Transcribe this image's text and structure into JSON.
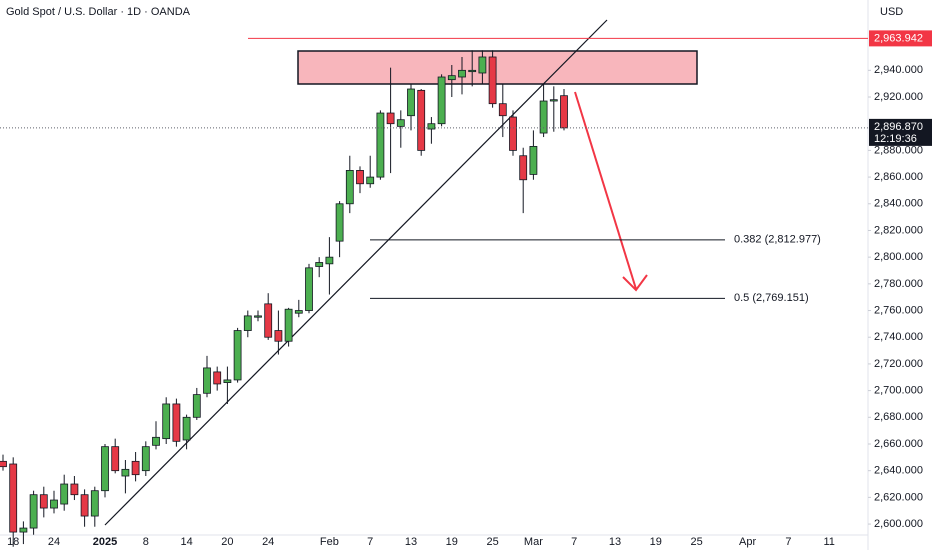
{
  "chart_data": {
    "type": "candlestick",
    "title": "Gold Spot / U.S. Dollar · 1D · OANDA",
    "currency": "USD",
    "up_color": "#4caf50",
    "down_color": "#e53946",
    "grid": false,
    "categories": [
      null,
      "18",
      null,
      null,
      null,
      "24",
      null,
      null,
      null,
      null,
      "2025",
      null,
      null,
      null,
      "8",
      null,
      null,
      null,
      "14",
      null,
      null,
      null,
      "20",
      null,
      null,
      null,
      "24",
      null,
      null,
      null,
      null,
      null,
      "Feb",
      null,
      null,
      null,
      "7",
      null,
      null,
      null,
      "13",
      null,
      null,
      null,
      "19",
      null,
      null,
      null,
      "25",
      null,
      null,
      null,
      "Mar",
      null,
      null,
      null,
      "7",
      null,
      null,
      null,
      "13",
      null,
      null,
      null,
      "19",
      null,
      null,
      null,
      "25",
      null,
      null,
      null,
      null,
      "Apr",
      null,
      null,
      null,
      "7",
      null,
      null,
      null,
      "11",
      null,
      null,
      null
    ],
    "open": [
      2647,
      2645,
      2594,
      2597,
      2622,
      2612,
      2615,
      2630,
      2622,
      2606,
      2625,
      2658,
      2636,
      2647,
      2640,
      2659,
      2664,
      2690,
      2663,
      2680,
      2698,
      2714,
      2706,
      2708,
      2745,
      2755,
      2765,
      2745,
      2737,
      2758,
      2760,
      2793,
      2795,
      2812,
      2840,
      2865,
      2855,
      2860,
      2908,
      2898,
      2906,
      2925,
      2896,
      2900,
      2933,
      2935,
      2939,
      2938,
      2950,
      2915,
      2905,
      2876,
      2862,
      2893,
      2917,
      2921,
      null,
      null,
      null,
      null,
      null,
      null,
      null,
      null,
      null,
      null,
      null,
      null,
      null,
      null,
      null,
      null,
      null,
      null,
      null,
      null,
      null,
      null,
      null,
      null,
      null,
      null,
      null,
      null,
      null
    ],
    "high": [
      2652,
      2650,
      2602,
      2625,
      2628,
      2625,
      2637,
      2636,
      2626,
      2628,
      2660,
      2664,
      2648,
      2654,
      2662,
      2677,
      2695,
      2694,
      2682,
      2702,
      2726,
      2718,
      2718,
      2747,
      2760,
      2760,
      2773,
      2760,
      2762,
      2768,
      2795,
      2800,
      2815,
      2842,
      2876,
      2868,
      2876,
      2910,
      2942,
      2910,
      2930,
      2926,
      2905,
      2937,
      2944,
      2950,
      2955,
      2955,
      2955,
      2930,
      2910,
      2882,
      2895,
      2930,
      2928,
      2926,
      null,
      null,
      null,
      null,
      null,
      null,
      null,
      null,
      null,
      null,
      null,
      null,
      null,
      null,
      null,
      null,
      null,
      null,
      null,
      null,
      null,
      null,
      null,
      null,
      null,
      null,
      null,
      null,
      null
    ],
    "low": [
      2640,
      2583,
      2585,
      2592,
      2605,
      2608,
      2610,
      2618,
      2598,
      2598,
      2620,
      2638,
      2623,
      2632,
      2636,
      2656,
      2660,
      2658,
      2656,
      2678,
      2695,
      2700,
      2690,
      2706,
      2740,
      2752,
      2738,
      2727,
      2733,
      2755,
      2758,
      2785,
      2772,
      2800,
      2833,
      2848,
      2852,
      2858,
      2863,
      2882,
      2895,
      2876,
      2885,
      2898,
      2920,
      2922,
      2928,
      2930,
      2912,
      2890,
      2876,
      2833,
      2858,
      2890,
      2894,
      2895,
      null,
      null,
      null,
      null,
      null,
      null,
      null,
      null,
      null,
      null,
      null,
      null,
      null,
      null,
      null,
      null,
      null,
      null,
      null,
      null,
      null,
      null,
      null,
      null,
      null,
      null,
      null,
      null,
      null
    ],
    "close": [
      2643,
      2594,
      2597,
      2622,
      2612,
      2618,
      2630,
      2622,
      2606,
      2625,
      2658,
      2640,
      2641,
      2637,
      2658,
      2665,
      2690,
      2662,
      2680,
      2697,
      2717,
      2705,
      2708,
      2745,
      2756,
      2756,
      2740,
      2737,
      2761,
      2760,
      2792,
      2796,
      2800,
      2840,
      2865,
      2855,
      2860,
      2908,
      2900,
      2903,
      2926,
      2880,
      2900,
      2935,
      2936,
      2940,
      2940,
      2950,
      2915,
      2906,
      2880,
      2858,
      2883,
      2917,
      2918,
      2896.87,
      null,
      null,
      null,
      null,
      null,
      null,
      null,
      null,
      null,
      null,
      null,
      null,
      null,
      null,
      null,
      null,
      null,
      null,
      null,
      null,
      null,
      null,
      null,
      null,
      null,
      null,
      null,
      null,
      null
    ],
    "ylim": [
      2591.8,
      2992.7
    ],
    "yticks": [
      {
        "value": 2600,
        "label": "2,600.000"
      },
      {
        "value": 2620,
        "label": "2,620.000"
      },
      {
        "value": 2640,
        "label": "2,640.000"
      },
      {
        "value": 2660,
        "label": "2,660.000"
      },
      {
        "value": 2680,
        "label": "2,680.000"
      },
      {
        "value": 2700,
        "label": "2,700.000"
      },
      {
        "value": 2720,
        "label": "2,720.000"
      },
      {
        "value": 2740,
        "label": "2,740.000"
      },
      {
        "value": 2760,
        "label": "2,760.000"
      },
      {
        "value": 2780,
        "label": "2,780.000"
      },
      {
        "value": 2800,
        "label": "2,800.000"
      },
      {
        "value": 2820,
        "label": "2,820.000"
      },
      {
        "value": 2840,
        "label": "2,840.000"
      },
      {
        "value": 2860,
        "label": "2,860.000"
      },
      {
        "value": 2880,
        "label": "2,880.000"
      },
      {
        "value": 2920,
        "label": "2,920.000"
      },
      {
        "value": 2940,
        "label": "2,940.000"
      }
    ],
    "level_line": {
      "value": 2963.942,
      "label": "2,963.942",
      "color": "#f23645"
    },
    "last_price": {
      "value": 2896.87,
      "label": "2,896.870",
      "countdown": "12:19:36"
    },
    "fib_levels": [
      {
        "value": 2812.977,
        "label": "0.382 (2,812.977)"
      },
      {
        "value": 2769.151,
        "label": "0.5 (2,769.151)"
      }
    ]
  }
}
